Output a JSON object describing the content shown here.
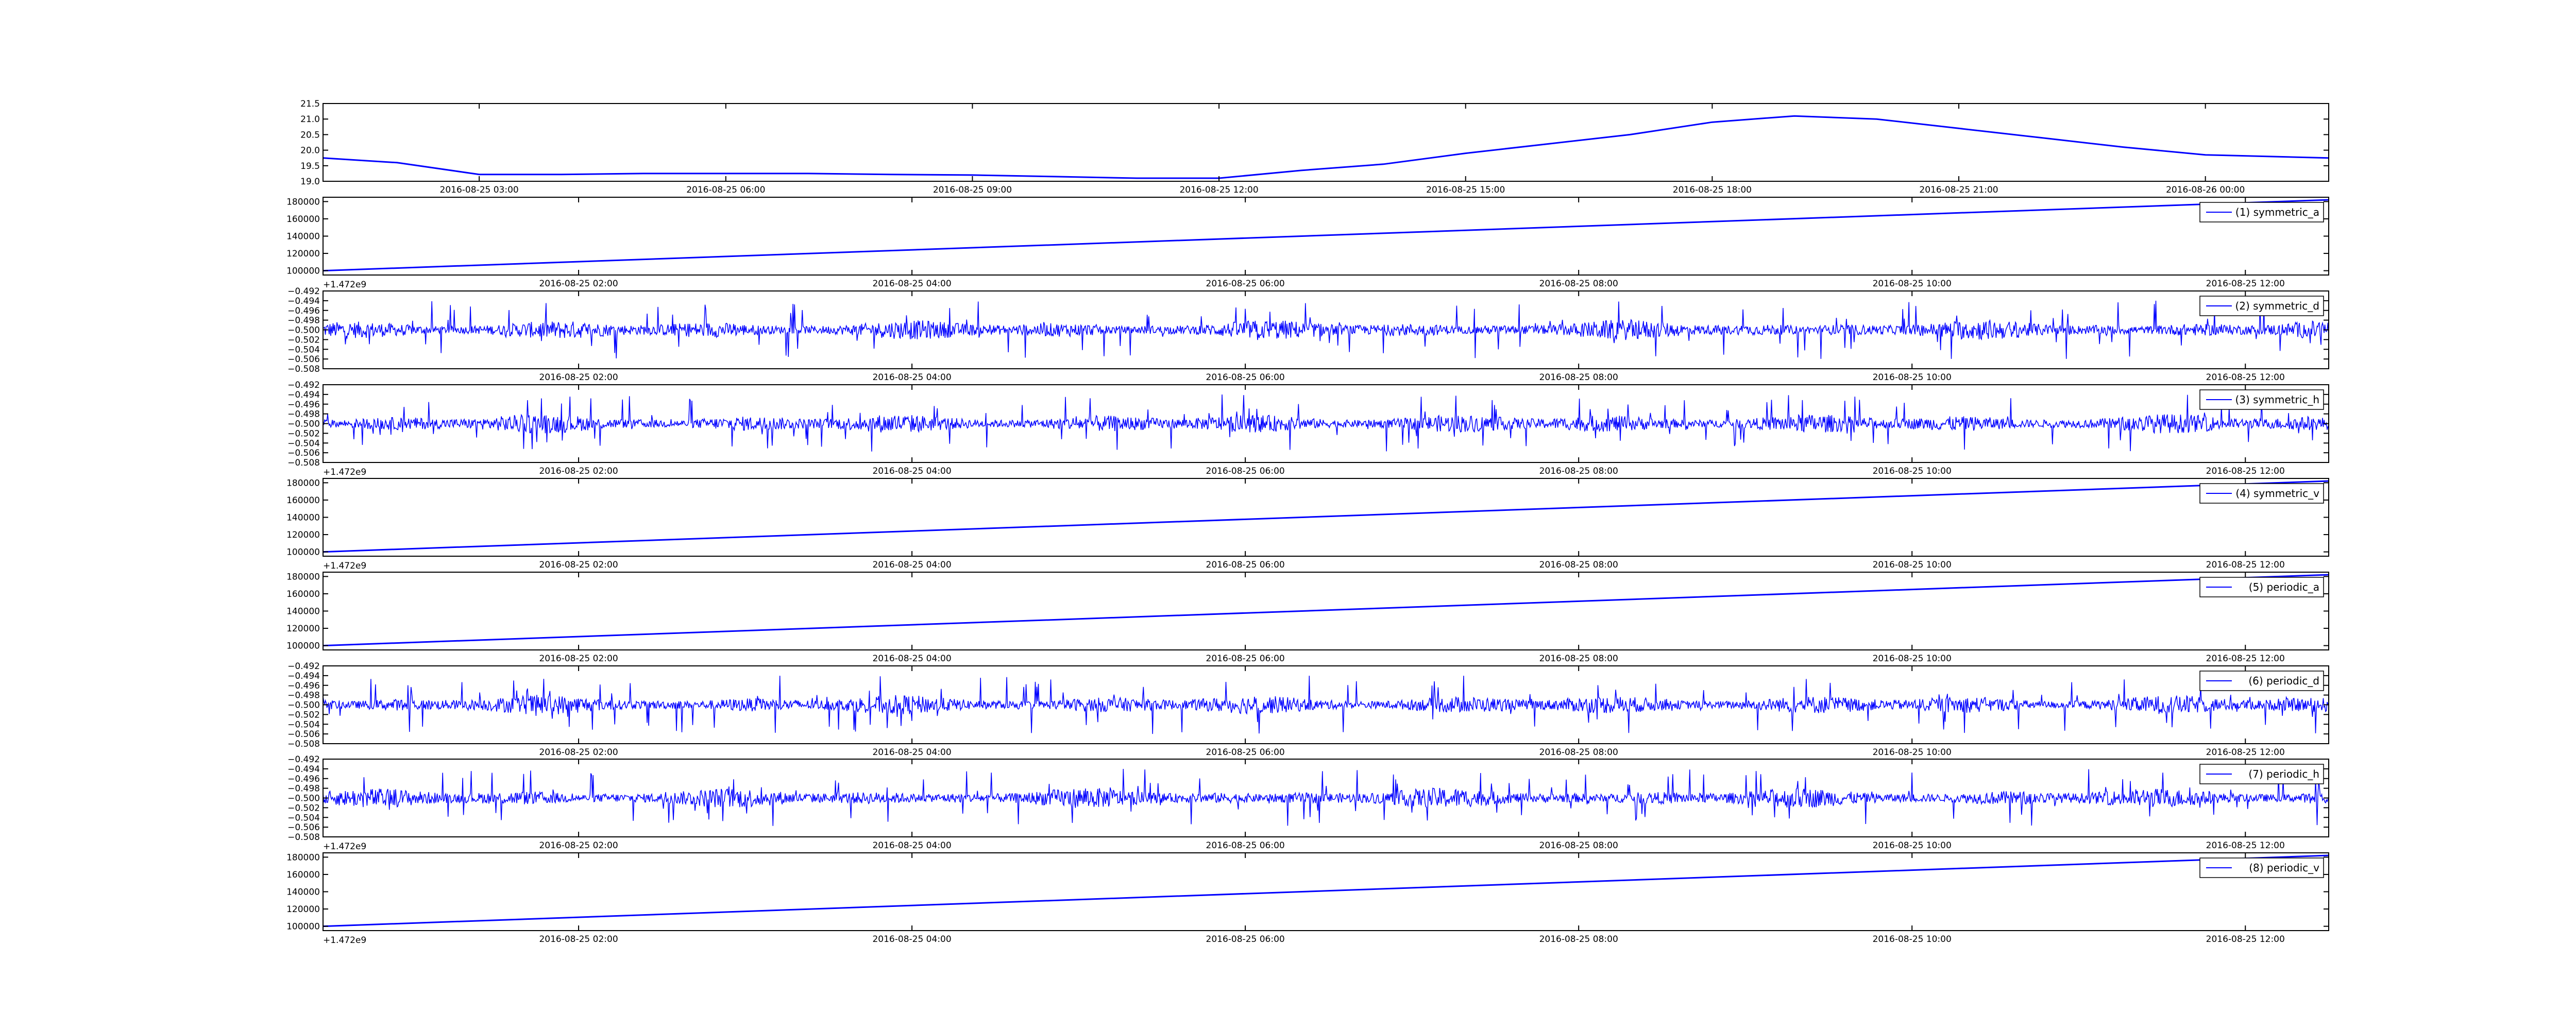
{
  "chart_data": [
    {
      "type": "line",
      "x_axis": "date",
      "x": [
        "2016-08-25 01:06",
        "2016-08-25 02:00",
        "2016-08-25 03:00",
        "2016-08-25 04:00",
        "2016-08-25 05:00",
        "2016-08-25 06:00",
        "2016-08-25 07:00",
        "2016-08-25 08:00",
        "2016-08-25 09:00",
        "2016-08-25 10:00",
        "2016-08-25 11:00",
        "2016-08-25 12:00",
        "2016-08-25 13:00",
        "2016-08-25 14:00",
        "2016-08-25 15:00",
        "2016-08-25 16:00",
        "2016-08-25 17:00",
        "2016-08-25 18:00",
        "2016-08-25 19:00",
        "2016-08-25 20:00",
        "2016-08-25 21:00",
        "2016-08-25 22:00",
        "2016-08-25 23:00",
        "2016-08-26 00:00",
        "2016-08-26 01:30"
      ],
      "series": [
        {
          "color": "#0000ff",
          "values": [
            19.75,
            19.6,
            19.22,
            19.22,
            19.25,
            19.25,
            19.25,
            19.22,
            19.2,
            19.15,
            19.1,
            19.1,
            19.35,
            19.55,
            19.9,
            20.2,
            20.5,
            20.9,
            21.1,
            21.0,
            20.7,
            20.4,
            20.1,
            19.85,
            19.75
          ]
        }
      ],
      "xticks": [
        "2016-08-25 03:00",
        "2016-08-25 06:00",
        "2016-08-25 09:00",
        "2016-08-25 12:00",
        "2016-08-25 15:00",
        "2016-08-25 18:00",
        "2016-08-25 21:00",
        "2016-08-26 00:00"
      ],
      "xlim": [
        "2016-08-25 01:06",
        "2016-08-26 01:30"
      ],
      "ylim": [
        19.0,
        21.5
      ],
      "yticks": [
        "19.0",
        "19.5",
        "20.0",
        "20.5",
        "21.0",
        "21.5"
      ],
      "grid": false
    },
    {
      "type": "line",
      "x_axis": "date",
      "offset_text": "+1.472e9",
      "x": [
        "2016-08-25 00:28",
        "2016-08-25 12:30"
      ],
      "series": [
        {
          "name": "(1) symmetric_a",
          "color": "#0000ff",
          "values": [
            100000,
            182000
          ]
        }
      ],
      "xticks": [
        "2016-08-25 02:00",
        "2016-08-25 04:00",
        "2016-08-25 06:00",
        "2016-08-25 08:00",
        "2016-08-25 10:00",
        "2016-08-25 12:00"
      ],
      "xlim": [
        "2016-08-25 00:28",
        "2016-08-25 12:30"
      ],
      "ylim": [
        95000,
        185000
      ],
      "yticks": [
        "100000",
        "120000",
        "140000",
        "160000",
        "180000"
      ],
      "legend": "top-right",
      "grid": false
    },
    {
      "type": "line",
      "x_axis": "date",
      "x": [
        "2016-08-25 00:28",
        "2016-08-25 12:30"
      ],
      "series": [
        {
          "name": "(2) symmetric_d",
          "color": "#0000ff",
          "baseline": -0.5,
          "noise_amplitude": 0.006
        }
      ],
      "xticks": [
        "2016-08-25 02:00",
        "2016-08-25 04:00",
        "2016-08-25 06:00",
        "2016-08-25 08:00",
        "2016-08-25 10:00",
        "2016-08-25 12:00"
      ],
      "xlim": [
        "2016-08-25 00:28",
        "2016-08-25 12:30"
      ],
      "ylim": [
        -0.508,
        -0.492
      ],
      "yticks": [
        "−0.508",
        "−0.506",
        "−0.504",
        "−0.502",
        "−0.500",
        "−0.498",
        "−0.496",
        "−0.494",
        "−0.492"
      ],
      "legend": "top-right",
      "grid": false
    },
    {
      "type": "line",
      "x_axis": "date",
      "offset_text": "+1.472e9",
      "x": [
        "2016-08-25 00:28",
        "2016-08-25 12:30"
      ],
      "series": [
        {
          "name": "(3) symmetric_h",
          "color": "#0000ff",
          "baseline": -0.5,
          "noise_amplitude": 0.006
        }
      ],
      "xticks": [
        "2016-08-25 02:00",
        "2016-08-25 04:00",
        "2016-08-25 06:00",
        "2016-08-25 08:00",
        "2016-08-25 10:00",
        "2016-08-25 12:00"
      ],
      "xlim": [
        "2016-08-25 00:28",
        "2016-08-25 12:30"
      ],
      "ylim": [
        -0.508,
        -0.492
      ],
      "yticks": [
        "−0.508",
        "−0.506",
        "−0.504",
        "−0.502",
        "−0.500",
        "−0.498",
        "−0.496",
        "−0.494",
        "−0.492"
      ],
      "legend": "top-right",
      "grid": false
    },
    {
      "type": "line",
      "x_axis": "date",
      "offset_text": "+1.472e9",
      "x": [
        "2016-08-25 00:28",
        "2016-08-25 12:30"
      ],
      "series": [
        {
          "name": "(4) symmetric_v",
          "color": "#0000ff",
          "values": [
            100000,
            182000
          ]
        }
      ],
      "xticks": [
        "2016-08-25 02:00",
        "2016-08-25 04:00",
        "2016-08-25 06:00",
        "2016-08-25 08:00",
        "2016-08-25 10:00",
        "2016-08-25 12:00"
      ],
      "xlim": [
        "2016-08-25 00:28",
        "2016-08-25 12:30"
      ],
      "ylim": [
        95000,
        185000
      ],
      "yticks": [
        "100000",
        "120000",
        "140000",
        "160000",
        "180000"
      ],
      "legend": "top-right",
      "grid": false
    },
    {
      "type": "line",
      "x_axis": "date",
      "x": [
        "2016-08-25 00:28",
        "2016-08-25 12:30"
      ],
      "series": [
        {
          "name": "(5) periodic_a",
          "color": "#0000ff",
          "values": [
            100000,
            182000
          ]
        }
      ],
      "xticks": [
        "2016-08-25 02:00",
        "2016-08-25 04:00",
        "2016-08-25 06:00",
        "2016-08-25 08:00",
        "2016-08-25 10:00",
        "2016-08-25 12:00"
      ],
      "xlim": [
        "2016-08-25 00:28",
        "2016-08-25 12:30"
      ],
      "ylim": [
        95000,
        185000
      ],
      "yticks": [
        "100000",
        "120000",
        "140000",
        "160000",
        "180000"
      ],
      "legend": "top-right",
      "grid": false
    },
    {
      "type": "line",
      "x_axis": "date",
      "x": [
        "2016-08-25 00:28",
        "2016-08-25 12:30"
      ],
      "series": [
        {
          "name": "(6) periodic_d",
          "color": "#0000ff",
          "baseline": -0.5,
          "noise_amplitude": 0.006
        }
      ],
      "xticks": [
        "2016-08-25 02:00",
        "2016-08-25 04:00",
        "2016-08-25 06:00",
        "2016-08-25 08:00",
        "2016-08-25 10:00",
        "2016-08-25 12:00"
      ],
      "xlim": [
        "2016-08-25 00:28",
        "2016-08-25 12:30"
      ],
      "ylim": [
        -0.508,
        -0.492
      ],
      "yticks": [
        "−0.508",
        "−0.506",
        "−0.504",
        "−0.502",
        "−0.500",
        "−0.498",
        "−0.496",
        "−0.494",
        "−0.492"
      ],
      "legend": "top-right",
      "grid": false
    },
    {
      "type": "line",
      "x_axis": "date",
      "offset_text": "+1.472e9",
      "x": [
        "2016-08-25 00:28",
        "2016-08-25 12:30"
      ],
      "series": [
        {
          "name": "(7) periodic_h",
          "color": "#0000ff",
          "baseline": -0.5,
          "noise_amplitude": 0.006
        }
      ],
      "xticks": [
        "2016-08-25 02:00",
        "2016-08-25 04:00",
        "2016-08-25 06:00",
        "2016-08-25 08:00",
        "2016-08-25 10:00",
        "2016-08-25 12:00"
      ],
      "xlim": [
        "2016-08-25 00:28",
        "2016-08-25 12:30"
      ],
      "ylim": [
        -0.508,
        -0.492
      ],
      "yticks": [
        "−0.508",
        "−0.506",
        "−0.504",
        "−0.502",
        "−0.500",
        "−0.498",
        "−0.496",
        "−0.494",
        "−0.492"
      ],
      "legend": "top-right",
      "grid": false
    },
    {
      "type": "line",
      "x_axis": "date",
      "offset_text": "+1.472e9",
      "x": [
        "2016-08-25 00:28",
        "2016-08-25 12:30"
      ],
      "series": [
        {
          "name": "(8) periodic_v",
          "color": "#0000ff",
          "values": [
            100000,
            182000
          ]
        }
      ],
      "xticks": [
        "2016-08-25 02:00",
        "2016-08-25 04:00",
        "2016-08-25 06:00",
        "2016-08-25 08:00",
        "2016-08-25 10:00",
        "2016-08-25 12:00"
      ],
      "xlim": [
        "2016-08-25 00:28",
        "2016-08-25 12:30"
      ],
      "ylim": [
        95000,
        185000
      ],
      "yticks": [
        "100000",
        "120000",
        "140000",
        "160000",
        "180000"
      ],
      "legend": "top-right",
      "grid": false
    }
  ]
}
